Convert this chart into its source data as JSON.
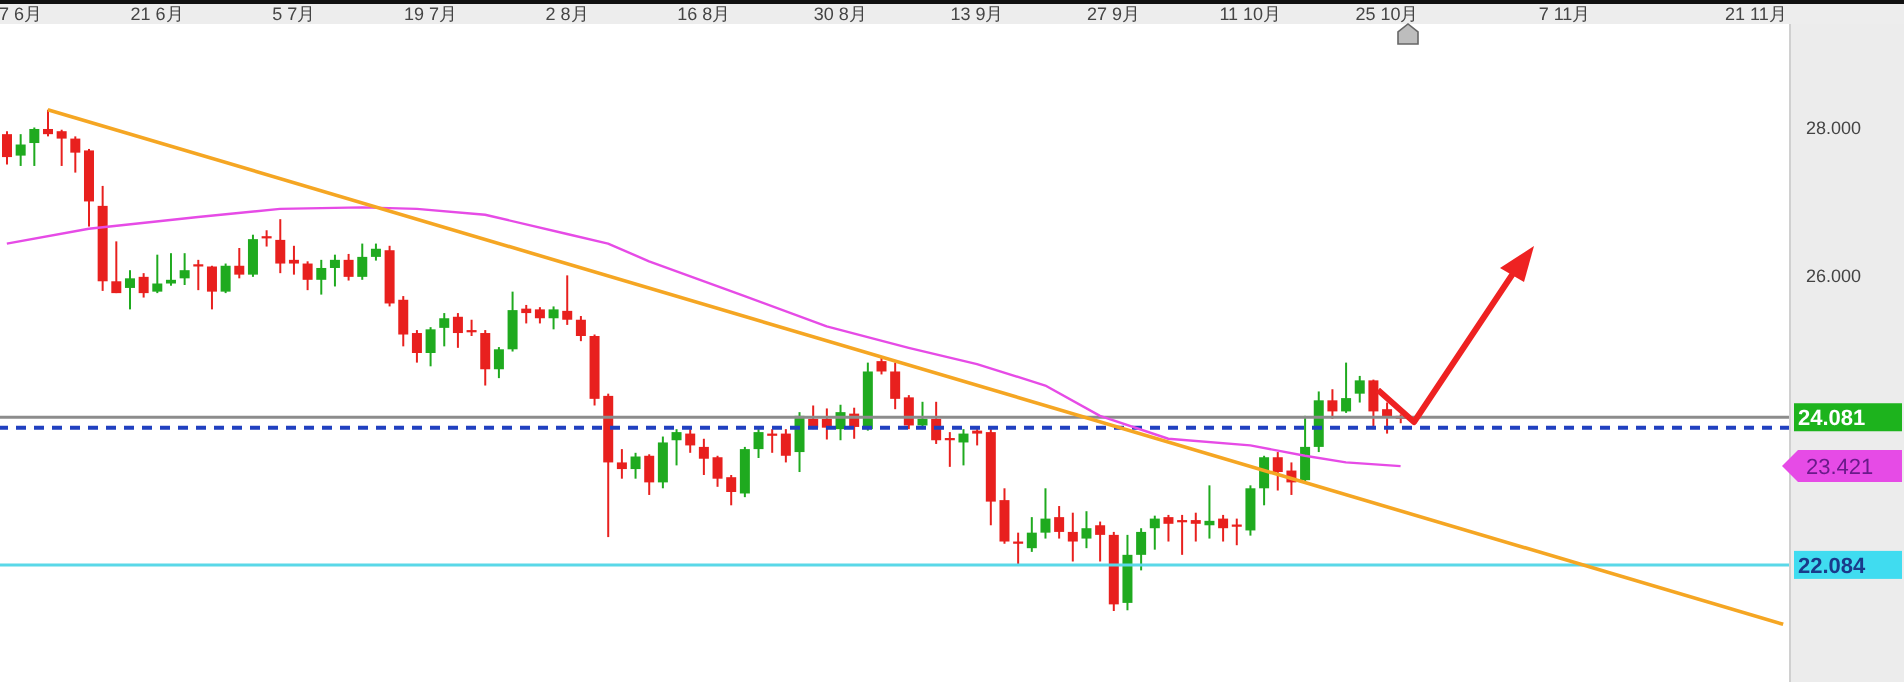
{
  "chart_data": {
    "type": "candlestick",
    "categories": [
      null,
      "7 6月",
      null,
      null,
      null,
      null,
      null,
      null,
      null,
      null,
      null,
      "21 6月",
      null,
      null,
      null,
      null,
      null,
      null,
      null,
      null,
      null,
      "5 7月",
      null,
      null,
      null,
      null,
      null,
      null,
      null,
      null,
      null,
      "19 7月",
      null,
      null,
      null,
      null,
      null,
      null,
      null,
      null,
      null,
      "2 8月",
      null,
      null,
      null,
      null,
      null,
      null,
      null,
      null,
      null,
      "16 8月",
      null,
      null,
      null,
      null,
      null,
      null,
      null,
      null,
      null,
      "30 8月",
      null,
      null,
      null,
      null,
      null,
      null,
      null,
      null,
      null,
      "13 9月",
      null,
      null,
      null,
      null,
      null,
      null,
      null,
      null,
      null,
      "27 9月",
      null,
      null,
      null,
      null,
      null,
      null,
      null,
      null,
      null,
      "11 10月",
      null,
      null,
      null,
      null,
      null,
      null,
      null,
      null,
      null,
      "25 10月",
      null,
      null,
      null,
      null,
      null,
      null,
      null,
      null,
      null,
      null,
      null,
      null,
      "7 11月",
      null,
      null,
      null,
      null,
      null,
      null,
      null,
      null,
      null,
      null,
      null,
      null,
      null,
      "21 11月",
      null,
      null
    ],
    "ohlc": [
      [
        27.91,
        27.95,
        27.5,
        27.6
      ],
      [
        27.62,
        27.91,
        27.48,
        27.77
      ],
      [
        27.79,
        28.0,
        27.48,
        27.98
      ],
      [
        27.98,
        28.24,
        27.88,
        27.91
      ],
      [
        27.95,
        27.97,
        27.48,
        27.85
      ],
      [
        27.85,
        27.88,
        27.39,
        27.66
      ],
      [
        27.69,
        27.71,
        26.66,
        27.0
      ],
      [
        26.94,
        27.21,
        25.79,
        25.92
      ],
      [
        25.92,
        26.46,
        25.76,
        25.76
      ],
      [
        25.83,
        26.07,
        25.54,
        25.96
      ],
      [
        25.98,
        26.03,
        25.7,
        25.76
      ],
      [
        25.78,
        26.28,
        25.76,
        25.89
      ],
      [
        25.89,
        26.3,
        25.86,
        25.94
      ],
      [
        25.96,
        26.3,
        25.87,
        26.07
      ],
      [
        26.15,
        26.21,
        25.8,
        26.12
      ],
      [
        26.12,
        26.13,
        25.54,
        25.78
      ],
      [
        25.78,
        26.16,
        25.76,
        26.13
      ],
      [
        26.13,
        26.37,
        25.96,
        26.01
      ],
      [
        26.01,
        26.55,
        25.98,
        26.49
      ],
      [
        26.53,
        26.61,
        26.39,
        26.5
      ],
      [
        26.48,
        26.76,
        26.03,
        26.16
      ],
      [
        26.21,
        26.4,
        26.01,
        26.16
      ],
      [
        26.16,
        26.19,
        25.8,
        25.94
      ],
      [
        25.94,
        26.21,
        25.74,
        26.1
      ],
      [
        26.1,
        26.28,
        25.85,
        26.21
      ],
      [
        26.21,
        26.29,
        25.93,
        25.98
      ],
      [
        25.98,
        26.43,
        25.94,
        26.25
      ],
      [
        26.25,
        26.43,
        26.2,
        26.36
      ],
      [
        26.34,
        26.4,
        25.58,
        25.62
      ],
      [
        25.67,
        25.72,
        25.04,
        25.2
      ],
      [
        25.22,
        25.26,
        24.82,
        24.95
      ],
      [
        24.95,
        25.3,
        24.77,
        25.27
      ],
      [
        25.29,
        25.49,
        25.04,
        25.42
      ],
      [
        25.44,
        25.49,
        25.02,
        25.22
      ],
      [
        25.26,
        25.4,
        25.18,
        25.23
      ],
      [
        25.22,
        25.26,
        24.51,
        24.73
      ],
      [
        24.73,
        25.03,
        24.61,
        25.0
      ],
      [
        25.0,
        25.78,
        24.97,
        25.53
      ],
      [
        25.55,
        25.6,
        25.35,
        25.49
      ],
      [
        25.54,
        25.57,
        25.35,
        25.42
      ],
      [
        25.42,
        25.58,
        25.27,
        25.54
      ],
      [
        25.52,
        26.0,
        25.33,
        25.4
      ],
      [
        25.4,
        25.45,
        25.11,
        25.18
      ],
      [
        25.18,
        25.2,
        24.24,
        24.33
      ],
      [
        24.37,
        24.4,
        22.46,
        23.47
      ],
      [
        23.47,
        23.65,
        23.25,
        23.38
      ],
      [
        23.38,
        23.6,
        23.25,
        23.55
      ],
      [
        23.56,
        23.58,
        23.03,
        23.2
      ],
      [
        23.2,
        23.82,
        23.12,
        23.74
      ],
      [
        23.77,
        23.92,
        23.43,
        23.88
      ],
      [
        23.86,
        23.92,
        23.6,
        23.7
      ],
      [
        23.68,
        23.79,
        23.3,
        23.52
      ],
      [
        23.54,
        23.56,
        23.14,
        23.25
      ],
      [
        23.27,
        23.3,
        22.89,
        23.07
      ],
      [
        23.05,
        23.68,
        23.0,
        23.65
      ],
      [
        23.65,
        23.92,
        23.53,
        23.88
      ],
      [
        23.86,
        23.92,
        23.6,
        23.83
      ],
      [
        23.86,
        23.92,
        23.47,
        23.56
      ],
      [
        23.61,
        24.15,
        23.34,
        24.1
      ],
      [
        24.06,
        24.24,
        23.92,
        23.94
      ],
      [
        24.06,
        24.2,
        23.78,
        23.94
      ],
      [
        23.92,
        24.25,
        23.77,
        24.15
      ],
      [
        24.13,
        24.21,
        23.79,
        23.95
      ],
      [
        23.92,
        24.82,
        23.9,
        24.7
      ],
      [
        24.84,
        24.89,
        24.66,
        24.7
      ],
      [
        24.7,
        24.82,
        24.19,
        24.33
      ],
      [
        24.35,
        24.38,
        23.92,
        23.97
      ],
      [
        23.97,
        24.29,
        23.92,
        24.06
      ],
      [
        24.06,
        24.29,
        23.72,
        23.77
      ],
      [
        23.8,
        23.88,
        23.41,
        23.77
      ],
      [
        23.74,
        23.92,
        23.43,
        23.86
      ],
      [
        23.9,
        23.92,
        23.7,
        23.86
      ],
      [
        23.88,
        23.94,
        22.62,
        22.94
      ],
      [
        22.96,
        23.12,
        22.37,
        22.4
      ],
      [
        22.4,
        22.52,
        22.07,
        22.37
      ],
      [
        22.31,
        22.73,
        22.26,
        22.52
      ],
      [
        22.52,
        23.12,
        22.44,
        22.71
      ],
      [
        22.73,
        22.88,
        22.44,
        22.53
      ],
      [
        22.53,
        22.79,
        22.13,
        22.4
      ],
      [
        22.44,
        22.81,
        22.31,
        22.58
      ],
      [
        22.62,
        22.67,
        22.13,
        22.49
      ],
      [
        22.49,
        22.53,
        21.46,
        21.55
      ],
      [
        21.57,
        22.49,
        21.47,
        22.22
      ],
      [
        22.22,
        22.58,
        22.01,
        22.53
      ],
      [
        22.58,
        22.75,
        22.29,
        22.71
      ],
      [
        22.73,
        22.76,
        22.4,
        22.64
      ],
      [
        22.69,
        22.76,
        22.22,
        22.66
      ],
      [
        22.69,
        22.79,
        22.4,
        22.64
      ],
      [
        22.62,
        23.16,
        22.44,
        22.68
      ],
      [
        22.71,
        22.76,
        22.4,
        22.58
      ],
      [
        22.63,
        22.71,
        22.35,
        22.6
      ],
      [
        22.55,
        23.16,
        22.48,
        23.12
      ],
      [
        23.12,
        23.56,
        22.89,
        23.54
      ],
      [
        23.54,
        23.61,
        23.09,
        23.34
      ],
      [
        23.36,
        23.47,
        23.03,
        23.2
      ],
      [
        23.23,
        24.1,
        23.2,
        23.68
      ],
      [
        23.68,
        24.43,
        23.61,
        24.31
      ],
      [
        24.31,
        24.46,
        24.06,
        24.16
      ],
      [
        24.16,
        24.82,
        24.14,
        24.34
      ],
      [
        24.4,
        24.64,
        24.28,
        24.58
      ],
      [
        24.58,
        24.59,
        23.92,
        24.16
      ],
      [
        24.19,
        24.28,
        23.86,
        24.08
      ],
      [
        24.1,
        24.12,
        24.0,
        24.06
      ],
      null,
      null,
      null,
      null,
      null,
      null,
      null,
      null,
      null,
      null,
      null,
      null,
      null,
      null,
      null,
      null,
      null,
      null,
      null,
      null,
      null,
      null,
      null,
      null,
      null,
      null,
      null,
      null
    ],
    "series": [
      {
        "type": "line",
        "color": "#e64be6",
        "values": [
          26.43,
          null,
          null,
          null,
          null,
          null,
          26.63,
          null,
          null,
          null,
          null,
          null,
          null,
          null,
          26.79,
          null,
          null,
          null,
          null,
          null,
          26.9,
          null,
          null,
          null,
          null,
          null,
          26.92,
          null,
          null,
          null,
          26.9,
          null,
          null,
          null,
          null,
          26.82,
          null,
          null,
          null,
          null,
          null,
          26.56,
          null,
          null,
          26.43,
          null,
          null,
          26.19,
          null,
          null,
          null,
          null,
          null,
          null,
          25.72,
          null,
          null,
          null,
          null,
          null,
          25.31,
          null,
          null,
          null,
          null,
          null,
          25.02,
          null,
          null,
          null,
          null,
          24.8,
          null,
          null,
          null,
          null,
          24.51,
          null,
          null,
          null,
          24.1,
          null,
          null,
          null,
          null,
          23.79,
          null,
          null,
          null,
          null,
          null,
          23.7,
          null,
          null,
          null,
          23.56,
          null,
          null,
          23.47,
          null,
          null,
          null,
          23.42,
          null,
          null,
          null,
          null,
          null,
          null,
          null,
          null,
          null,
          null,
          null,
          null,
          null,
          null,
          null,
          null,
          null,
          null,
          null,
          null,
          null,
          null,
          null,
          null,
          null,
          null,
          null,
          null
        ]
      },
      {
        "type": "line",
        "color": "#f5a623",
        "values": [
          null,
          null,
          null,
          28.24,
          null,
          null,
          null,
          null,
          null,
          null,
          null,
          null,
          null,
          null,
          null,
          null,
          null,
          null,
          null,
          null,
          null,
          null,
          null,
          null,
          null,
          null,
          null,
          null,
          null,
          null,
          null,
          null,
          null,
          null,
          null,
          null,
          null,
          null,
          null,
          null,
          null,
          null,
          null,
          null,
          null,
          null,
          null,
          null,
          null,
          null,
          null,
          null,
          null,
          null,
          null,
          null,
          null,
          null,
          null,
          null,
          null,
          null,
          null,
          null,
          null,
          null,
          null,
          null,
          null,
          null,
          null,
          null,
          null,
          null,
          null,
          null,
          null,
          null,
          null,
          null,
          null,
          null,
          null,
          null,
          null,
          null,
          null,
          null,
          null,
          null,
          null,
          null,
          null,
          null,
          null,
          null,
          null,
          null,
          null,
          null,
          null,
          null,
          null,
          null,
          null,
          null,
          null,
          null,
          null,
          null,
          null,
          null,
          null,
          null,
          null,
          null,
          null,
          null,
          null,
          null,
          null,
          null,
          null,
          null,
          null,
          null,
          null,
          null,
          null,
          null,
          21.28
        ]
      }
    ],
    "ylim": [
      20.5,
      29.4
    ],
    "yticks": [
      {
        "value": 28,
        "label": "28.000"
      },
      {
        "value": 26,
        "label": "26.000"
      }
    ],
    "ref_lines": [
      {
        "axis": "y",
        "value": 24.081,
        "label": "24.081",
        "color": "#8c8c8c"
      },
      {
        "axis": "y",
        "value": 23.94,
        "color": "#2040c0",
        "line_style": "dashed"
      },
      {
        "axis": "y",
        "value": 22.084,
        "label": "22.084",
        "color": "#5ad8e8"
      }
    ],
    "annotations": [
      "23.421"
    ]
  }
}
